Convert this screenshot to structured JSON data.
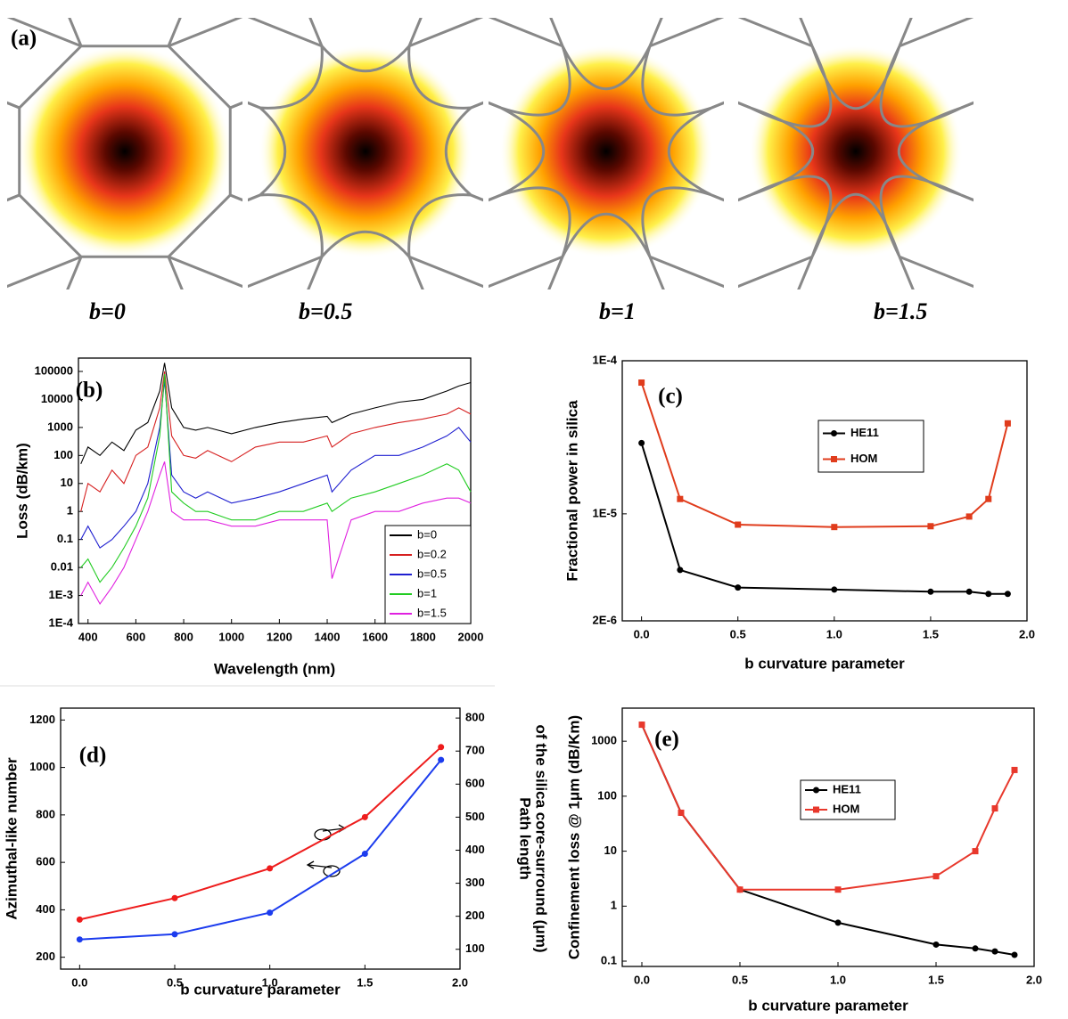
{
  "panel_a": {
    "label": "(a)",
    "captions": [
      "b=0",
      "b=0.5",
      "b=1",
      "b=1.5"
    ]
  },
  "chart_data": [
    {
      "type": "line",
      "panel_label": "(b)",
      "xlabel": "Wavelength (nm)",
      "ylabel": "Loss (dB/km)",
      "ylog": true,
      "legend": "lower right",
      "xlim": [
        360,
        2000
      ],
      "xticks": [
        400,
        600,
        800,
        1000,
        1200,
        1400,
        1600,
        1800,
        2000
      ],
      "ylim": [
        0.0001,
        300000
      ],
      "yticks": [
        100000,
        10000,
        1000,
        100,
        10,
        1,
        0.1,
        0.01,
        {
          "value": 0.001,
          "label": "1E-3"
        },
        {
          "value": 0.0001,
          "label": "1E-4"
        }
      ],
      "x": [
        370,
        400,
        450,
        500,
        550,
        600,
        650,
        700,
        720,
        750,
        800,
        850,
        900,
        1000,
        1100,
        1200,
        1300,
        1400,
        1420,
        1500,
        1600,
        1700,
        1800,
        1900,
        1950,
        2000
      ],
      "series": [
        {
          "name": "b=0",
          "color": "#000000",
          "values": [
            50,
            200,
            100,
            300,
            150,
            800,
            1500,
            20000,
            200000,
            5000,
            1000,
            800,
            1000,
            600,
            1000,
            1500,
            2000,
            2500,
            1500,
            3000,
            5000,
            8000,
            10000,
            20000,
            30000,
            40000
          ]
        },
        {
          "name": "b=0.2",
          "color": "#d62020",
          "values": [
            1,
            10,
            5,
            30,
            10,
            100,
            200,
            5000,
            100000,
            500,
            100,
            80,
            150,
            60,
            200,
            300,
            300,
            500,
            200,
            600,
            1000,
            1500,
            2000,
            3000,
            5000,
            3000
          ]
        },
        {
          "name": "b=0.5",
          "color": "#1f1fd0",
          "values": [
            0.1,
            0.3,
            0.05,
            0.1,
            0.3,
            1,
            10,
            1000,
            50000,
            20,
            5,
            3,
            5,
            2,
            3,
            5,
            10,
            20,
            5,
            30,
            100,
            100,
            200,
            500,
            1000,
            300
          ]
        },
        {
          "name": "b=1",
          "color": "#22cc22",
          "values": [
            0.01,
            0.02,
            0.003,
            0.01,
            0.05,
            0.3,
            3,
            500,
            80000,
            5,
            2,
            1,
            1,
            0.5,
            0.5,
            1,
            1,
            2,
            1,
            3,
            5,
            10,
            20,
            50,
            30,
            5
          ]
        },
        {
          "name": "b=1.5",
          "color": "#e020e0",
          "values": [
            0.001,
            0.003,
            0.0005,
            0.002,
            0.01,
            0.1,
            1,
            20,
            60,
            1,
            0.5,
            0.5,
            0.5,
            0.3,
            0.3,
            0.5,
            0.5,
            0.5,
            0.004,
            0.5,
            1,
            1,
            2,
            3,
            3,
            2
          ]
        }
      ]
    },
    {
      "type": "line",
      "panel_label": "(c)",
      "xlabel": "b curvature parameter",
      "ylabel": "Fractional power in silica",
      "ylog": true,
      "legend": "upper center",
      "xlim": [
        -0.1,
        2.0
      ],
      "xticks": [
        {
          "value": 0,
          "label": "0.0"
        },
        {
          "value": 0.5,
          "label": "0.5"
        },
        {
          "value": 1,
          "label": "1.0"
        },
        {
          "value": 1.5,
          "label": "1.5"
        },
        {
          "value": 2,
          "label": "2.0"
        }
      ],
      "ylim": [
        2e-06,
        0.0001
      ],
      "yticks": [
        {
          "value": 0.0001,
          "label": "1E-4"
        },
        {
          "value": 1e-05,
          "label": "1E-5"
        },
        {
          "value": 2e-06,
          "label": "2E-6"
        }
      ],
      "series": [
        {
          "name": "HE11",
          "color": "#000000",
          "marker": "circle",
          "x": [
            0,
            0.2,
            0.5,
            1,
            1.5,
            1.7,
            1.8,
            1.9
          ],
          "values": [
            2.9e-05,
            4.3e-06,
            3.3e-06,
            3.2e-06,
            3.1e-06,
            3.1e-06,
            3e-06,
            3e-06
          ]
        },
        {
          "name": "HOM",
          "color": "#e03c1c",
          "marker": "square",
          "x": [
            0,
            0.2,
            0.5,
            1,
            1.5,
            1.7,
            1.8,
            1.9
          ],
          "values": [
            7.2e-05,
            1.25e-05,
            8.5e-06,
            8.2e-06,
            8.3e-06,
            9.6e-06,
            1.25e-05,
            3.9e-05
          ]
        }
      ]
    },
    {
      "type": "line",
      "panel_label": "(d)",
      "xlabel": "b curvature parameter",
      "ylabel": "Azimuthal-like number",
      "y2label": [
        "Path length",
        "of the silica core-surround (μm)"
      ],
      "xlim": [
        -0.1,
        2.0
      ],
      "xticks": [
        {
          "value": 0,
          "label": "0.0"
        },
        {
          "value": 0.5,
          "label": "0.5"
        },
        {
          "value": 1,
          "label": "1.0"
        },
        {
          "value": 1.5,
          "label": "1.5"
        },
        {
          "value": 2,
          "label": "2.0"
        }
      ],
      "ylim": [
        150,
        1250
      ],
      "yticks": [
        200,
        400,
        600,
        800,
        1000,
        1200
      ],
      "y2lim": [
        40,
        830
      ],
      "y2ticks": [
        100,
        200,
        300,
        400,
        500,
        600,
        700,
        800
      ],
      "series": [
        {
          "name": "Azimuthal-like number",
          "color": "#1c3cee",
          "marker": "circle",
          "x": [
            0,
            0.5,
            1,
            1.5,
            1.9
          ],
          "values": [
            275,
            297,
            388,
            636,
            1032
          ]
        },
        {
          "name": "Path length",
          "color": "#ee1c1c",
          "marker": "circle",
          "axis": "y2",
          "x": [
            0,
            0.5,
            1,
            1.5,
            1.9
          ],
          "values": [
            190,
            255,
            345,
            500,
            712
          ]
        }
      ]
    },
    {
      "type": "line",
      "panel_label": "(e)",
      "xlabel": "b curvature parameter",
      "ylabel": "Confinement loss @ 1μm (dB/Km)",
      "ylog": true,
      "legend": "center",
      "xlim": [
        -0.1,
        2.0
      ],
      "xticks": [
        {
          "value": 0,
          "label": "0.0"
        },
        {
          "value": 0.5,
          "label": "0.5"
        },
        {
          "value": 1,
          "label": "1.0"
        },
        {
          "value": 1.5,
          "label": "1.5"
        },
        {
          "value": 2,
          "label": "2.0"
        }
      ],
      "ylim": [
        0.08,
        4000
      ],
      "yticks": [
        1000,
        100,
        10,
        1,
        0.1
      ],
      "series": [
        {
          "name": "HE11",
          "color": "#000000",
          "marker": "circle",
          "x": [
            0,
            0.2,
            0.5,
            1,
            1.5,
            1.7,
            1.8,
            1.9
          ],
          "values": [
            2000,
            50,
            2,
            0.5,
            0.2,
            0.17,
            0.15,
            0.13
          ]
        },
        {
          "name": "HOM",
          "color": "#e8382c",
          "marker": "square",
          "x": [
            0,
            0.2,
            0.5,
            1,
            1.5,
            1.7,
            1.8,
            1.9
          ],
          "values": [
            2000,
            50,
            2,
            2,
            3.5,
            10,
            60,
            300
          ]
        }
      ]
    }
  ]
}
